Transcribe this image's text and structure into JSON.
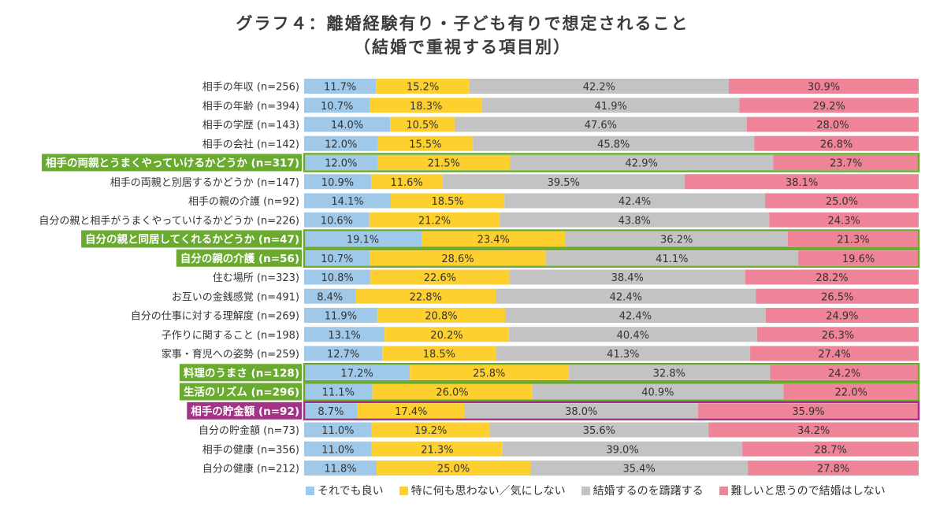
{
  "colors": {
    "series": [
      "#9fc8e9",
      "#fdd02f",
      "#c3c3c3",
      "#ef8397"
    ],
    "highlight_green": "#6aaa2f",
    "highlight_purple": "#a33387"
  },
  "chart_data": {
    "type": "bar",
    "orientation": "horizontal",
    "stacked": "100%",
    "title": "グラフ４：離婚経験有り・子ども有りで想定されること",
    "subtitle": "（結婚で重視する項目別）",
    "xlim": [
      0,
      100
    ],
    "legend_position": "bottom",
    "series": [
      {
        "name": "それでも良い"
      },
      {
        "name": "特に何も思わない／気にしない"
      },
      {
        "name": "結婚するのを躊躇する"
      },
      {
        "name": "難しいと思うので結婚はしない"
      }
    ],
    "rows": [
      {
        "label": "相手の年収 (n=256)",
        "values": [
          11.7,
          15.2,
          42.2,
          30.9
        ],
        "highlight": ""
      },
      {
        "label": "相手の年齢 (n=394)",
        "values": [
          10.7,
          18.3,
          41.9,
          29.2
        ],
        "highlight": ""
      },
      {
        "label": "相手の学歴 (n=143)",
        "values": [
          14.0,
          10.5,
          47.6,
          28.0
        ],
        "highlight": ""
      },
      {
        "label": "相手の会社 (n=142)",
        "values": [
          12.0,
          15.5,
          45.8,
          26.8
        ],
        "highlight": ""
      },
      {
        "label": "相手の両親とうまくやっていけるかどうか (n=317)",
        "values": [
          12.0,
          21.5,
          42.9,
          23.7
        ],
        "highlight": "green"
      },
      {
        "label": "相手の両親と別居するかどうか (n=147)",
        "values": [
          10.9,
          11.6,
          39.5,
          38.1
        ],
        "highlight": ""
      },
      {
        "label": "相手の親の介護 (n=92)",
        "values": [
          14.1,
          18.5,
          42.4,
          25.0
        ],
        "highlight": ""
      },
      {
        "label": "自分の親と相手がうまくやっていけるかどうか (n=226)",
        "values": [
          10.6,
          21.2,
          43.8,
          24.3
        ],
        "highlight": ""
      },
      {
        "label": "自分の親と同居してくれるかどうか (n=47)",
        "values": [
          19.1,
          23.4,
          36.2,
          21.3
        ],
        "highlight": "green"
      },
      {
        "label": "自分の親の介護 (n=56)",
        "values": [
          10.7,
          28.6,
          41.1,
          19.6
        ],
        "highlight": "green"
      },
      {
        "label": "住む場所 (n=323)",
        "values": [
          10.8,
          22.6,
          38.4,
          28.2
        ],
        "highlight": ""
      },
      {
        "label": "お互いの金銭感覚 (n=491)",
        "values": [
          8.4,
          22.8,
          42.4,
          26.5
        ],
        "highlight": ""
      },
      {
        "label": "自分の仕事に対する理解度 (n=269)",
        "values": [
          11.9,
          20.8,
          42.4,
          24.9
        ],
        "highlight": ""
      },
      {
        "label": "子作りに関すること (n=198)",
        "values": [
          13.1,
          20.2,
          40.4,
          26.3
        ],
        "highlight": ""
      },
      {
        "label": "家事・育児への姿勢 (n=259)",
        "values": [
          12.7,
          18.5,
          41.3,
          27.4
        ],
        "highlight": ""
      },
      {
        "label": "料理のうまさ (n=128)",
        "values": [
          17.2,
          25.8,
          32.8,
          24.2
        ],
        "highlight": "green"
      },
      {
        "label": "生活のリズム (n=296)",
        "values": [
          11.1,
          26.0,
          40.9,
          22.0
        ],
        "highlight": "green"
      },
      {
        "label": "相手の貯金額 (n=92)",
        "values": [
          8.7,
          17.4,
          38.0,
          35.9
        ],
        "highlight": "purple"
      },
      {
        "label": "自分の貯金額 (n=73)",
        "values": [
          11.0,
          19.2,
          35.6,
          34.2
        ],
        "highlight": ""
      },
      {
        "label": "相手の健康 (n=356)",
        "values": [
          11.0,
          21.3,
          39.0,
          28.7
        ],
        "highlight": ""
      },
      {
        "label": "自分の健康 (n=212)",
        "values": [
          11.8,
          25.0,
          35.4,
          27.8
        ],
        "highlight": ""
      }
    ]
  }
}
